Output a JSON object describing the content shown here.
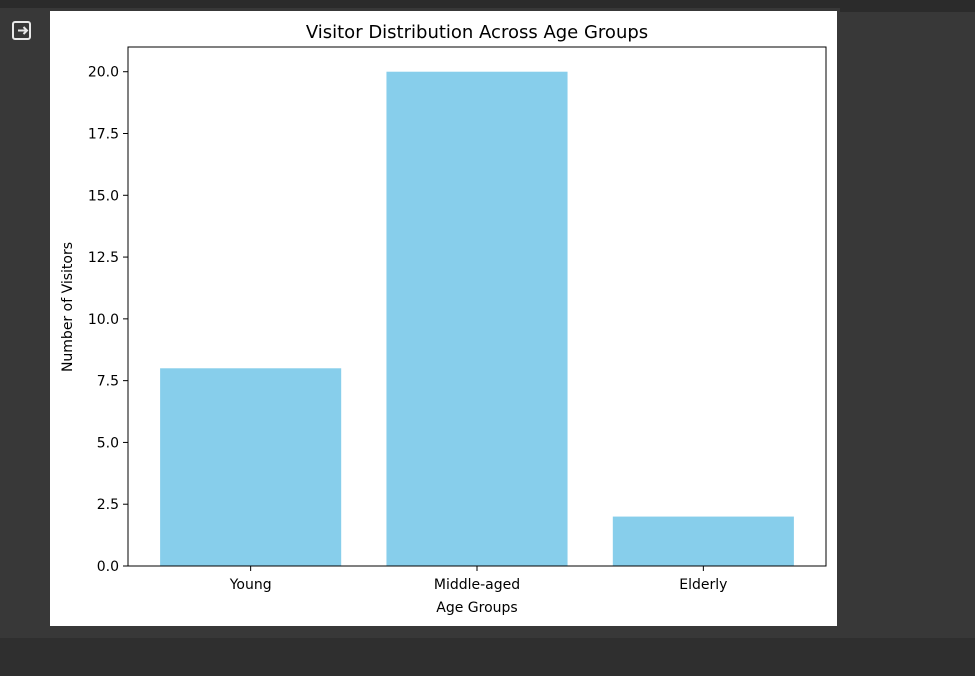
{
  "output_area": {
    "icon_name": "output-redirect-icon"
  },
  "chart_data": {
    "type": "bar",
    "title": "Visitor Distribution Across Age Groups",
    "xlabel": "Age Groups",
    "ylabel": "Number of Visitors",
    "categories": [
      "Young",
      "Middle-aged",
      "Elderly"
    ],
    "values": [
      8,
      20,
      2
    ],
    "ylim": [
      0,
      21
    ],
    "yticks": [
      "0.0",
      "2.5",
      "5.0",
      "7.5",
      "10.0",
      "12.5",
      "15.0",
      "17.5",
      "20.0"
    ],
    "grid": false,
    "bar_color": "#87ceeb"
  },
  "colors": {
    "background": "#383838",
    "figure_background": "#ffffff",
    "icon": "#e8e8e8"
  }
}
